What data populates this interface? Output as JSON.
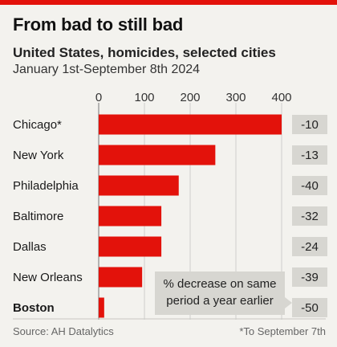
{
  "header": {
    "title": "From bad to still bad",
    "subtitle": "United States, homicides, selected cities",
    "period": "January 1st-September 8th 2024"
  },
  "footer": {
    "source": "Source: AH Datalytics",
    "note": "*To September 7th"
  },
  "annotation": {
    "line1": "% decrease on same",
    "line2": "period a year earlier"
  },
  "colors": {
    "bar": "#e3120b",
    "badge": "#d7d6d1",
    "accent": "#e3120b"
  },
  "chart_data": {
    "type": "bar",
    "orientation": "horizontal",
    "categories": [
      "Chicago*",
      "New York",
      "Philadelphia",
      "Baltimore",
      "Dallas",
      "New Orleans",
      "Boston"
    ],
    "values": [
      400,
      255,
      175,
      137,
      137,
      95,
      12
    ],
    "pct_change": [
      "-10",
      "-13",
      "-40",
      "-32",
      "-24",
      "-39",
      "-50"
    ],
    "highlight": "Boston",
    "xlim": [
      0,
      400
    ],
    "xticks": [
      "0",
      "100",
      "200",
      "300",
      "400"
    ],
    "grid": true
  }
}
